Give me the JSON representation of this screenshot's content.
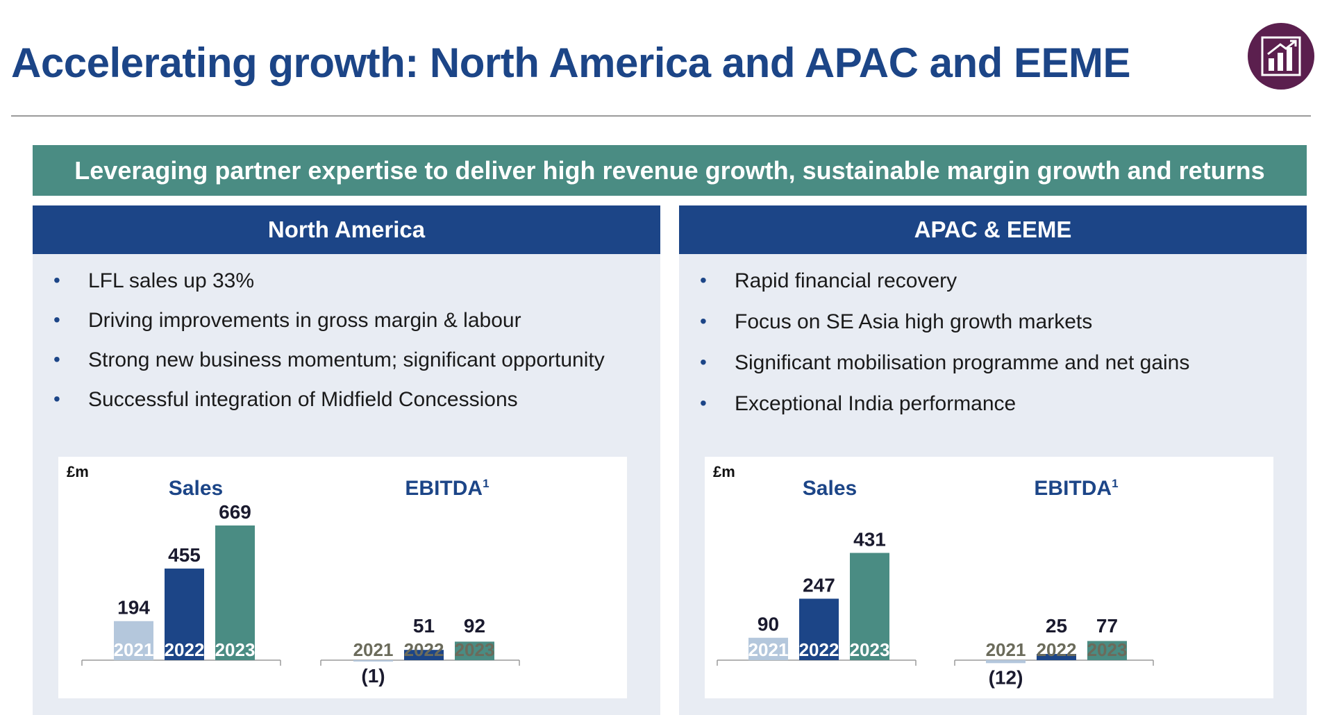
{
  "page": {
    "title": "Accelerating growth: North America and APAC and EEME",
    "logo_icon": "bar-chart-growth-icon",
    "banner": "Leveraging partner expertise to deliver high revenue growth, sustainable margin growth and returns"
  },
  "panels": [
    {
      "title": "North America",
      "bullets": [
        "LFL sales up 33%",
        "Driving improvements in gross margin & labour",
        "Strong new business momentum; significant opportunity",
        "Successful integration of Midfield Concessions"
      ]
    },
    {
      "title": "APAC & EEME",
      "bullets": [
        "Rapid financial recovery",
        "Focus on SE Asia high growth markets",
        "Significant mobilisation programme and net gains",
        "Exceptional India performance"
      ]
    }
  ],
  "colors": {
    "navy": "#1c4587",
    "teal": "#4a8c83",
    "light_blue": "#b4c7dc",
    "logo_purple": "#5b1f4e"
  },
  "chart_data": [
    {
      "type": "bar",
      "region": "North America",
      "unit": "£m",
      "title": "Sales",
      "categories": [
        "2021",
        "2022",
        "2023"
      ],
      "values": [
        194,
        455,
        669
      ],
      "value_labels": [
        "194",
        "455",
        "669"
      ]
    },
    {
      "type": "bar",
      "region": "North America",
      "title": "EBITDA",
      "title_sup": "1",
      "categories": [
        "2021",
        "2022",
        "2023"
      ],
      "values": [
        -1,
        51,
        92
      ],
      "value_labels": [
        "(1)",
        "51",
        "92"
      ]
    },
    {
      "type": "bar",
      "region": "APAC & EEME",
      "unit": "£m",
      "title": "Sales",
      "categories": [
        "2021",
        "2022",
        "2023"
      ],
      "values": [
        90,
        247,
        431
      ],
      "value_labels": [
        "90",
        "247",
        "431"
      ]
    },
    {
      "type": "bar",
      "region": "APAC & EEME",
      "title": "EBITDA",
      "title_sup": "1",
      "categories": [
        "2021",
        "2022",
        "2023"
      ],
      "values": [
        -12,
        25,
        77
      ],
      "value_labels": [
        "(12)",
        "25",
        "77"
      ]
    }
  ]
}
